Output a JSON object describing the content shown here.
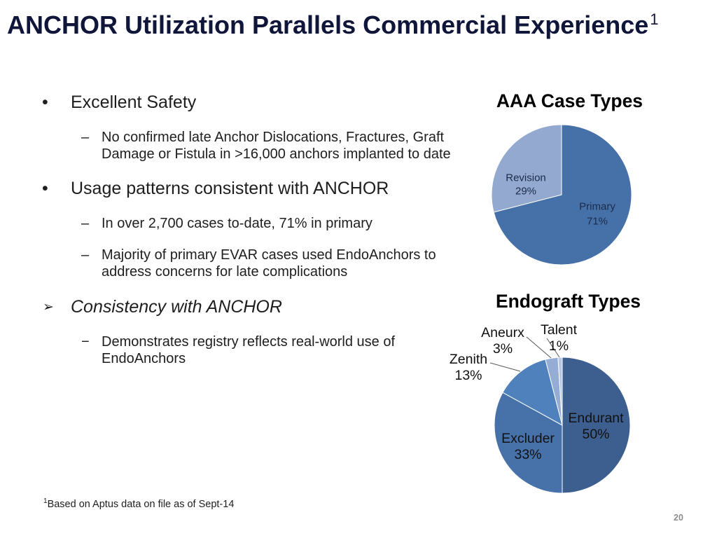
{
  "slide": {
    "title": "ANCHOR Utilization Parallels Commercial Experience",
    "title_superscript": "1",
    "footnote": {
      "marker": "1",
      "text": "Based on Aptus data on file as of Sept-14"
    },
    "page_number": "20"
  },
  "bullets": [
    {
      "marker": "•",
      "text": "Excellent Safety",
      "subs": [
        {
          "marker": "–",
          "lines": [
            "No confirmed late Anchor Dislocations, Fractures, Graft",
            "Damage or Fistula in >16,000 anchors implanted to date"
          ]
        }
      ]
    },
    {
      "marker": "•",
      "text": "Usage patterns consistent with ANCHOR",
      "subs": [
        {
          "marker": "–",
          "lines": [
            "In over 2,700 cases to-date, 71% in primary"
          ]
        },
        {
          "marker": "–",
          "lines": [
            "Majority of primary EVAR cases used EndoAnchors to",
            "address concerns for late complications"
          ]
        }
      ]
    },
    {
      "marker": "➢",
      "text": "Consistency with ANCHOR",
      "subs": [
        {
          "marker": "−",
          "lines": [
            "Demonstrates registry reflects real-world use of",
            "EndoAnchors"
          ]
        }
      ]
    }
  ],
  "chart_data": [
    {
      "type": "pie",
      "title": "AAA Case Types",
      "categories": [
        "Primary",
        "Revision"
      ],
      "values": [
        71,
        29
      ],
      "data_labels": [
        "71%",
        "29%"
      ],
      "colors": [
        "#4671a8",
        "#93a9cf"
      ],
      "legend": "none"
    },
    {
      "type": "pie",
      "title": "Endograft Types",
      "categories": [
        "Endurant",
        "Excluder",
        "Zenith",
        "Aneurx",
        "Talent"
      ],
      "values": [
        50,
        33,
        13,
        3,
        1
      ],
      "data_labels": [
        "50%",
        "33%",
        "13%",
        "3%",
        "1%"
      ],
      "colors": [
        "#3d5f8f",
        "#4771a9",
        "#4f81bd",
        "#95acd4",
        "#b8c8e2"
      ],
      "legend": "none"
    }
  ]
}
